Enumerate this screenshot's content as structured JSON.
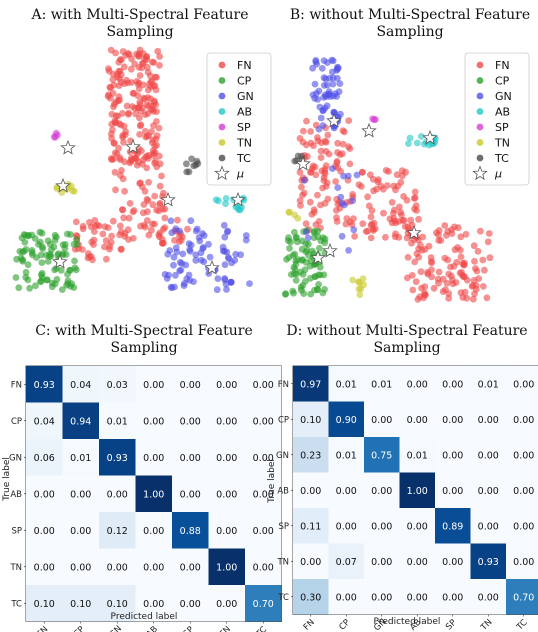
{
  "chart_data": [
    {
      "type": "scatter",
      "title": "A: with Multi-Spectral Feature Sampling",
      "title_lines": [
        "A: with Multi-Spectral Feature",
        "Sampling"
      ],
      "axes_visible": false,
      "legend_placement": "top-right",
      "legend": [
        "FN",
        "CP",
        "GN",
        "AB",
        "SP",
        "TN",
        "TC",
        "μ"
      ],
      "series": [
        {
          "name": "FN",
          "color": "#f04848",
          "clusters": [
            {
              "x": [
                108,
                160
              ],
              "y": [
                50,
                160
              ],
              "n": 170
            },
            {
              "x": [
                115,
                165
              ],
              "y": [
                150,
                240
              ],
              "n": 70
            },
            {
              "x": [
                75,
                125
              ],
              "y": [
                220,
                260
              ],
              "n": 40
            },
            {
              "x": [
                150,
                190
              ],
              "y": [
                220,
                245
              ],
              "n": 20
            }
          ]
        },
        {
          "name": "CP",
          "color": "#2ca02c",
          "clusters": [
            {
              "x": [
                16,
                80
              ],
              "y": [
                232,
                292
              ],
              "n": 90
            }
          ]
        },
        {
          "name": "GN",
          "color": "#5050e6",
          "clusters": [
            {
              "x": [
                165,
                250
              ],
              "y": [
                220,
                290
              ],
              "n": 80
            }
          ]
        },
        {
          "name": "AB",
          "color": "#20c8c8",
          "clusters": [
            {
              "x": [
                214,
                248
              ],
              "y": [
                198,
                210
              ],
              "n": 14
            }
          ]
        },
        {
          "name": "SP",
          "color": "#d33cd3",
          "clusters": [
            {
              "x": [
                50,
                58
              ],
              "y": [
                130,
                138
              ],
              "n": 4
            }
          ]
        },
        {
          "name": "TN",
          "color": "#c8c82a",
          "clusters": [
            {
              "x": [
                55,
                75
              ],
              "y": [
                180,
                196
              ],
              "n": 10
            }
          ]
        },
        {
          "name": "TC",
          "color": "#4a4a4a",
          "clusters": [
            {
              "x": [
                186,
                198
              ],
              "y": [
                158,
                172
              ],
              "n": 8
            }
          ]
        }
      ],
      "centroids": [
        [
          68,
          148
        ],
        [
          133,
          147
        ],
        [
          168,
          200
        ],
        [
          238,
          200
        ],
        [
          63,
          186
        ],
        [
          60,
          262
        ],
        [
          212,
          268
        ]
      ]
    },
    {
      "type": "scatter",
      "title": "B: without Multi-Spectral Feature Sampling",
      "title_lines": [
        "B: without Multi-Spectral Feature",
        "Sampling"
      ],
      "axes_visible": false,
      "legend_placement": "top-right",
      "legend": [
        "FN",
        "CP",
        "GN",
        "AB",
        "SP",
        "TN",
        "TC",
        "μ"
      ],
      "series": [
        {
          "name": "FN",
          "color": "#f04848",
          "clusters": [
            {
              "x": [
                300,
                350
              ],
              "y": [
                120,
                230
              ],
              "n": 90
            },
            {
              "x": [
                350,
                420
              ],
              "y": [
                170,
                240
              ],
              "n": 80
            },
            {
              "x": [
                405,
                490
              ],
              "y": [
                225,
                300
              ],
              "n": 110
            }
          ]
        },
        {
          "name": "CP",
          "color": "#2ca02c",
          "clusters": [
            {
              "x": [
                285,
                325
              ],
              "y": [
                230,
                300
              ],
              "n": 80
            }
          ]
        },
        {
          "name": "GN",
          "color": "#5050e6",
          "clusters": [
            {
              "x": [
                312,
                342
              ],
              "y": [
                60,
                130
              ],
              "n": 60
            },
            {
              "x": [
                300,
                370
              ],
              "y": [
                160,
                260
              ],
              "n": 15
            }
          ]
        },
        {
          "name": "AB",
          "color": "#20c8c8",
          "clusters": [
            {
              "x": [
                408,
                440
              ],
              "y": [
                136,
                146
              ],
              "n": 14
            }
          ]
        },
        {
          "name": "SP",
          "color": "#d33cd3",
          "clusters": [
            {
              "x": [
                370,
                376
              ],
              "y": [
                118,
                126
              ],
              "n": 3
            }
          ]
        },
        {
          "name": "TN",
          "color": "#c8c82a",
          "clusters": [
            {
              "x": [
                350,
                365
              ],
              "y": [
                278,
                296
              ],
              "n": 8
            },
            {
              "x": [
                288,
                300
              ],
              "y": [
                210,
                222
              ],
              "n": 4
            }
          ]
        },
        {
          "name": "TC",
          "color": "#4a4a4a",
          "clusters": [
            {
              "x": [
                294,
                302
              ],
              "y": [
                155,
                162
              ],
              "n": 5
            }
          ]
        }
      ],
      "centroids": [
        [
          334,
          121
        ],
        [
          369,
          131
        ],
        [
          430,
          138
        ],
        [
          303,
          164
        ],
        [
          414,
          233
        ],
        [
          330,
          251
        ],
        [
          318,
          258
        ]
      ]
    },
    {
      "type": "heatmap",
      "title": "C: with Multi-Spectral Feature Sampling",
      "title_lines": [
        "C: with Multi-Spectral Feature",
        "Sampling"
      ],
      "xlabel": "Predicted label",
      "ylabel": "True label",
      "labels": [
        "FN",
        "CP",
        "GN",
        "AB",
        "SP",
        "TN",
        "TC"
      ],
      "values": [
        [
          0.93,
          0.04,
          0.03,
          0.0,
          0.0,
          0.0,
          0.0
        ],
        [
          0.04,
          0.94,
          0.01,
          0.0,
          0.0,
          0.0,
          0.0
        ],
        [
          0.06,
          0.01,
          0.93,
          0.0,
          0.0,
          0.0,
          0.0
        ],
        [
          0.0,
          0.0,
          0.0,
          1.0,
          0.0,
          0.0,
          0.0
        ],
        [
          0.0,
          0.0,
          0.12,
          0.0,
          0.88,
          0.0,
          0.0
        ],
        [
          0.0,
          0.0,
          0.0,
          0.0,
          0.0,
          1.0,
          0.0
        ],
        [
          0.1,
          0.1,
          0.1,
          0.0,
          0.0,
          0.0,
          0.7
        ]
      ],
      "colormap": "Blues"
    },
    {
      "type": "heatmap",
      "title": "D: without Multi-Spectral Feature Sampling",
      "title_lines": [
        "D: without Multi-Spectral Feature",
        "Sampling"
      ],
      "xlabel": "Predicted label",
      "ylabel": "True label",
      "labels": [
        "FN",
        "CP",
        "GN",
        "AB",
        "SP",
        "TN",
        "TC"
      ],
      "values": [
        [
          0.97,
          0.01,
          0.01,
          0.0,
          0.0,
          0.01,
          0.0
        ],
        [
          0.1,
          0.9,
          0.0,
          0.0,
          0.0,
          0.0,
          0.0
        ],
        [
          0.23,
          0.01,
          0.75,
          0.01,
          0.0,
          0.0,
          0.0
        ],
        [
          0.0,
          0.0,
          0.0,
          1.0,
          0.0,
          0.0,
          0.0
        ],
        [
          0.11,
          0.0,
          0.0,
          0.0,
          0.89,
          0.0,
          0.0
        ],
        [
          0.0,
          0.07,
          0.0,
          0.0,
          0.0,
          0.93,
          0.0
        ],
        [
          0.3,
          0.0,
          0.0,
          0.0,
          0.0,
          0.0,
          0.7
        ]
      ],
      "colormap": "Blues"
    }
  ]
}
